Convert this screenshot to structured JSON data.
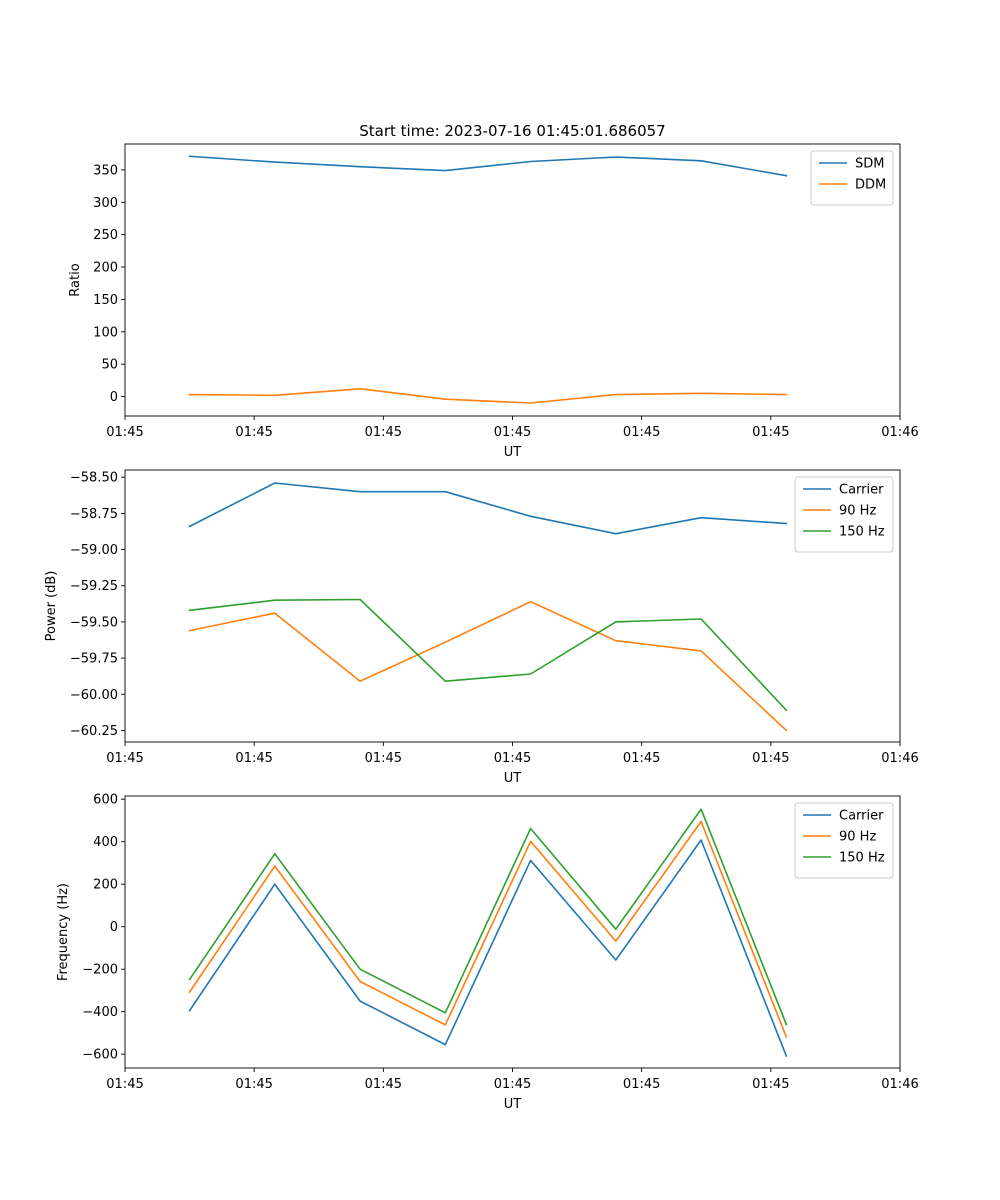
{
  "figure": {
    "title": "Start time: 2023-07-16 01:45:01.686057"
  },
  "chart_data": [
    {
      "type": "line",
      "title": "Start time: 2023-07-16 01:45:01.686057",
      "xlabel": "UT",
      "ylabel": "Ratio",
      "xlim": [
        0,
        9
      ],
      "ylim": [
        -30,
        390
      ],
      "xticks": [
        0,
        1,
        2,
        3,
        4,
        5,
        6,
        7,
        8,
        9
      ],
      "xticklabels": [
        "01:45",
        "01:45",
        "01:45",
        "01:45",
        "01:45",
        "01:45",
        "01:46"
      ],
      "xtick_positions": [
        0,
        1.5,
        3,
        4.5,
        6,
        7.5,
        9
      ],
      "yticks": [
        0,
        50,
        100,
        150,
        200,
        250,
        300,
        350
      ],
      "yticklabels": [
        "0",
        "50",
        "100",
        "150",
        "200",
        "250",
        "300",
        "350"
      ],
      "legend_loc": "upper right",
      "x": [
        0.75,
        1.74,
        2.73,
        3.72,
        4.71,
        5.7,
        6.69,
        7.68
      ],
      "series": [
        {
          "name": "SDM",
          "color": "#1f77b4",
          "values": [
            371,
            362,
            355,
            349,
            363,
            370,
            364,
            341
          ]
        },
        {
          "name": "DDM",
          "color": "#ff7f0e",
          "values": [
            3,
            2,
            12,
            -4,
            -10,
            3,
            5,
            3
          ]
        }
      ]
    },
    {
      "type": "line",
      "title": "",
      "xlabel": "UT",
      "ylabel": "Power (dB)",
      "xlim": [
        0,
        9
      ],
      "ylim": [
        -60.33,
        -58.45
      ],
      "xtick_positions": [
        0,
        1.5,
        3,
        4.5,
        6,
        7.5,
        9
      ],
      "xticklabels": [
        "01:45",
        "01:45",
        "01:45",
        "01:45",
        "01:45",
        "01:45",
        "01:46"
      ],
      "yticks": [
        -60.25,
        -60.0,
        -59.75,
        -59.5,
        -59.25,
        -59.0,
        -58.75,
        -58.5
      ],
      "yticklabels": [
        "−60.25",
        "−60.00",
        "−59.75",
        "−59.50",
        "−59.25",
        "−59.00",
        "−58.75",
        "−58.50"
      ],
      "legend_loc": "upper right",
      "x": [
        0.75,
        1.74,
        2.73,
        3.72,
        4.71,
        5.7,
        6.69,
        7.68
      ],
      "series": [
        {
          "name": "Carrier",
          "color": "#1f77b4",
          "values": [
            -58.84,
            -58.54,
            -58.6,
            -58.6,
            -58.77,
            -58.89,
            -58.78,
            -58.82
          ]
        },
        {
          "name": "90 Hz",
          "color": "#ff7f0e",
          "values": [
            -59.56,
            -59.44,
            -59.91,
            -59.64,
            -59.36,
            -59.63,
            -59.7,
            -60.25
          ]
        },
        {
          "name": "150 Hz",
          "color": "#2ca02c",
          "values": [
            -59.42,
            -59.35,
            -59.345,
            -59.91,
            -59.86,
            -59.5,
            -59.48,
            -60.11
          ]
        }
      ]
    },
    {
      "type": "line",
      "title": "",
      "xlabel": "UT",
      "ylabel": "Frequency (Hz)",
      "xlim": [
        0,
        9
      ],
      "ylim": [
        -665,
        615
      ],
      "xtick_positions": [
        0,
        1.5,
        3,
        4.5,
        6,
        7.5,
        9
      ],
      "xticklabels": [
        "01:45",
        "01:45",
        "01:45",
        "01:45",
        "01:45",
        "01:45",
        "01:46"
      ],
      "yticks": [
        -600,
        -400,
        -200,
        0,
        200,
        400,
        600
      ],
      "yticklabels": [
        "−600",
        "−400",
        "−200",
        "0",
        "200",
        "400",
        "600"
      ],
      "legend_loc": "upper right",
      "x": [
        0.75,
        1.74,
        2.73,
        3.72,
        4.71,
        5.7,
        6.69,
        7.68
      ],
      "series": [
        {
          "name": "Carrier",
          "color": "#1f77b4",
          "values": [
            -395,
            200,
            -350,
            -555,
            312,
            -157,
            408,
            -608
          ]
        },
        {
          "name": "90 Hz",
          "color": "#ff7f0e",
          "values": [
            -308,
            285,
            -258,
            -462,
            402,
            -68,
            495,
            -518
          ]
        },
        {
          "name": "150 Hz",
          "color": "#2ca02c",
          "values": [
            -248,
            343,
            -200,
            -405,
            462,
            -12,
            553,
            -460
          ]
        }
      ]
    }
  ]
}
